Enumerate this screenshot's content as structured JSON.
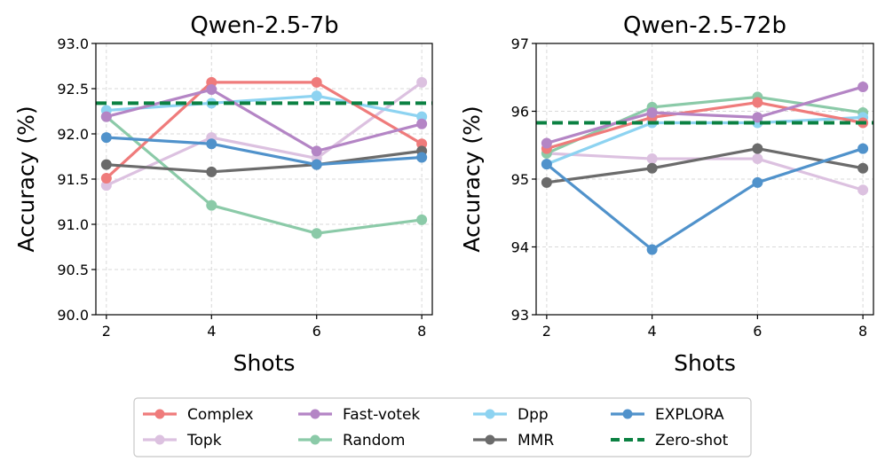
{
  "chart_data": [
    {
      "type": "line",
      "title": "Qwen-2.5-7b",
      "xlabel": "Shots",
      "ylabel": "Accuracy (%)",
      "x": [
        2,
        4,
        6,
        8
      ],
      "xlim": [
        1.8,
        8.2
      ],
      "ylim": [
        90.0,
        93.0
      ],
      "yticks": [
        90.0,
        90.5,
        91.0,
        91.5,
        92.0,
        92.5,
        93.0
      ],
      "ytick_labels": [
        "90.0",
        "90.5",
        "91.0",
        "91.5",
        "92.0",
        "92.5",
        "93.0"
      ],
      "xticks": [
        2,
        4,
        6,
        8
      ],
      "xtick_labels": [
        "2",
        "4",
        "6",
        "8"
      ],
      "grid": true,
      "zero_shot": 92.34,
      "series": [
        {
          "name": "Topk",
          "values": [
            91.43,
            91.96,
            91.73,
            92.57
          ]
        },
        {
          "name": "Random",
          "values": [
            92.19,
            91.21,
            90.9,
            91.05
          ]
        },
        {
          "name": "Dpp",
          "values": [
            92.26,
            92.34,
            92.42,
            92.19
          ]
        },
        {
          "name": "Complex",
          "values": [
            91.51,
            92.57,
            92.57,
            91.89
          ]
        },
        {
          "name": "Fast-votek",
          "values": [
            92.19,
            92.49,
            91.81,
            92.11
          ]
        },
        {
          "name": "MMR",
          "values": [
            91.66,
            91.58,
            91.66,
            91.81
          ]
        },
        {
          "name": "EXPLORA",
          "values": [
            91.96,
            91.89,
            91.66,
            91.74
          ]
        }
      ]
    },
    {
      "type": "line",
      "title": "Qwen-2.5-72b",
      "xlabel": "Shots",
      "ylabel": "Accuracy (%)",
      "x": [
        2,
        4,
        6,
        8
      ],
      "xlim": [
        1.8,
        8.2
      ],
      "ylim": [
        93,
        97
      ],
      "yticks": [
        93,
        94,
        95,
        96,
        97
      ],
      "ytick_labels": [
        "93",
        "94",
        "95",
        "96",
        "97"
      ],
      "xticks": [
        2,
        4,
        6,
        8
      ],
      "xtick_labels": [
        "2",
        "4",
        "6",
        "8"
      ],
      "grid": true,
      "zero_shot": 95.83,
      "series": [
        {
          "name": "Topk",
          "values": [
            95.38,
            95.3,
            95.3,
            94.84
          ]
        },
        {
          "name": "Random",
          "values": [
            95.38,
            96.06,
            96.21,
            95.98
          ]
        },
        {
          "name": "Dpp",
          "values": [
            95.22,
            95.83,
            95.83,
            95.91
          ]
        },
        {
          "name": "Complex",
          "values": [
            95.45,
            95.91,
            96.13,
            95.83
          ]
        },
        {
          "name": "Fast-votek",
          "values": [
            95.53,
            95.98,
            95.91,
            96.36
          ]
        },
        {
          "name": "MMR",
          "values": [
            94.95,
            95.16,
            95.45,
            95.16
          ]
        },
        {
          "name": "EXPLORA",
          "values": [
            95.22,
            93.96,
            94.95,
            95.45
          ]
        }
      ]
    }
  ],
  "legend": {
    "items": [
      {
        "name": "Complex",
        "color": "#ef7b7b",
        "style": "line-marker"
      },
      {
        "name": "Topk",
        "color": "#dcc1e0",
        "style": "line-marker"
      },
      {
        "name": "Fast-votek",
        "color": "#b485c5",
        "style": "line-marker"
      },
      {
        "name": "Random",
        "color": "#8bcaa8",
        "style": "line-marker"
      },
      {
        "name": "Dpp",
        "color": "#8dd3f1",
        "style": "line-marker"
      },
      {
        "name": "MMR",
        "color": "#6b6b6b",
        "style": "line-marker"
      },
      {
        "name": "EXPLORA",
        "color": "#5092cb",
        "style": "line-marker"
      },
      {
        "name": "Zero-shot",
        "color": "#0b8142",
        "style": "dashed"
      }
    ]
  }
}
